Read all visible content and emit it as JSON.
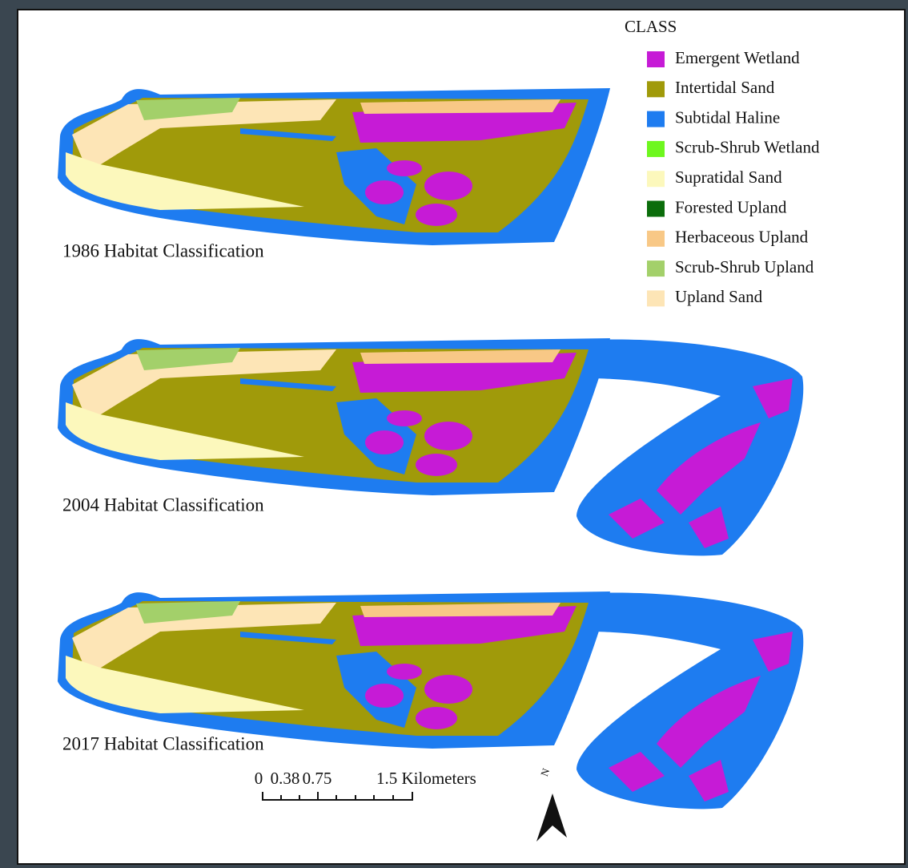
{
  "legend": {
    "title": "CLASS",
    "items": [
      {
        "label": "Emergent Wetland",
        "color": "#c61bd6"
      },
      {
        "label": "Intertidal Sand",
        "color": "#a09a0a"
      },
      {
        "label": "Subtidal Haline",
        "color": "#1e7cf0"
      },
      {
        "label": "Scrub-Shrub Wetland",
        "color": "#6ef71e"
      },
      {
        "label": "Supratidal Sand",
        "color": "#fcf8bc"
      },
      {
        "label": "Forested Upland",
        "color": "#0b6d0b"
      },
      {
        "label": "Herbaceous Upland",
        "color": "#f8c886"
      },
      {
        "label": "Scrub-Shrub Upland",
        "color": "#a3d06a"
      },
      {
        "label": "Upland Sand",
        "color": "#fde5b6"
      }
    ]
  },
  "maps": [
    {
      "label": "1986 Habitat Classification"
    },
    {
      "label": "2004 Habitat Classification"
    },
    {
      "label": "2017 Habitat Classification"
    }
  ],
  "scale_bar": {
    "labels": [
      "0",
      "0.38",
      "0.75",
      "1.5 Kilometers"
    ]
  },
  "north_arrow": {
    "label": "N"
  }
}
